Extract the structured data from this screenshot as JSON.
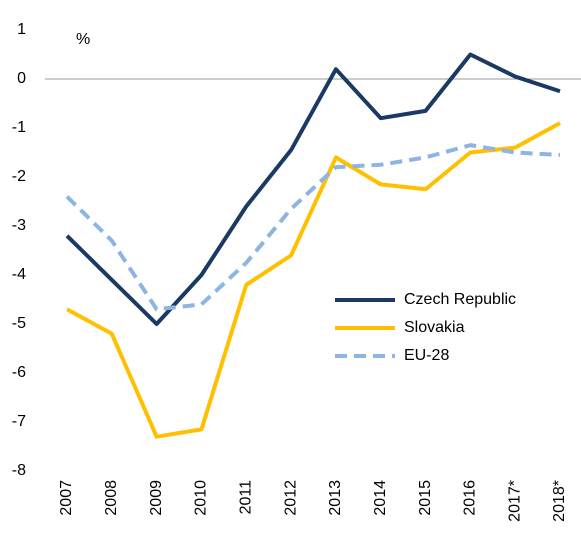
{
  "chart_data": {
    "type": "line",
    "y_label": "%",
    "categories": [
      "2007",
      "2008",
      "2009",
      "2010",
      "2011",
      "2012",
      "2013",
      "2014",
      "2015",
      "2016",
      "2017*",
      "2018*"
    ],
    "series": [
      {
        "name": "Czech Republic",
        "color": "#1b3a63",
        "dash": false,
        "values": [
          -3.2,
          -4.1,
          -5.0,
          -4.0,
          -2.6,
          -1.45,
          0.2,
          -0.8,
          -0.65,
          0.5,
          0.05,
          -0.25
        ]
      },
      {
        "name": "Slovakia",
        "color": "#ffc000",
        "dash": false,
        "values": [
          -4.7,
          -5.2,
          -7.3,
          -7.15,
          -4.2,
          -3.6,
          -1.6,
          -2.15,
          -2.25,
          -1.5,
          -1.4,
          -0.9
        ]
      },
      {
        "name": "EU-28",
        "color": "#8db4e2",
        "dash": true,
        "values": [
          -2.4,
          -3.3,
          -4.7,
          -4.6,
          -3.75,
          -2.65,
          -1.8,
          -1.75,
          -1.6,
          -1.35,
          -1.5,
          -1.55
        ]
      }
    ],
    "ylim": [
      -8,
      1
    ],
    "yticks": [
      1,
      0,
      -1,
      -2,
      -3,
      -4,
      -5,
      -6,
      -7,
      -8
    ],
    "grid": false
  }
}
